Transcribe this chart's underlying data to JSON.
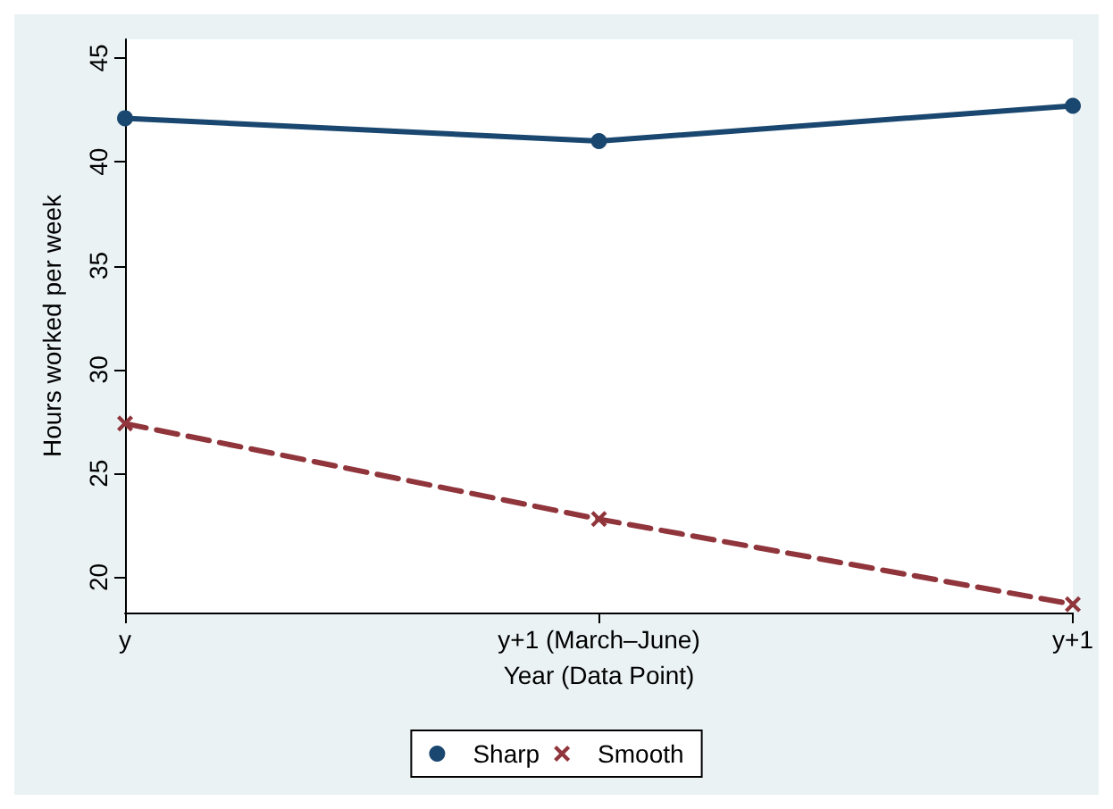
{
  "chart_data": {
    "type": "line",
    "xlabel": "Year (Data Point)",
    "ylabel": "Hours worked per week",
    "categories": [
      "y",
      "y+1 (March–June)",
      "y+1"
    ],
    "series": [
      {
        "name": "Sharp",
        "color": "#1a476f",
        "marker": "circle",
        "line_style": "solid",
        "values": [
          42.1,
          41.0,
          42.7
        ]
      },
      {
        "name": "Smooth",
        "color": "#90353b",
        "marker": "cross",
        "line_style": "dashed",
        "values": [
          27.4,
          22.8,
          18.7
        ]
      }
    ],
    "ylim": [
      18.3,
      45.9
    ],
    "yticks": [
      20,
      25,
      30,
      35,
      40,
      45
    ],
    "grid": false,
    "legend": "bottom"
  }
}
